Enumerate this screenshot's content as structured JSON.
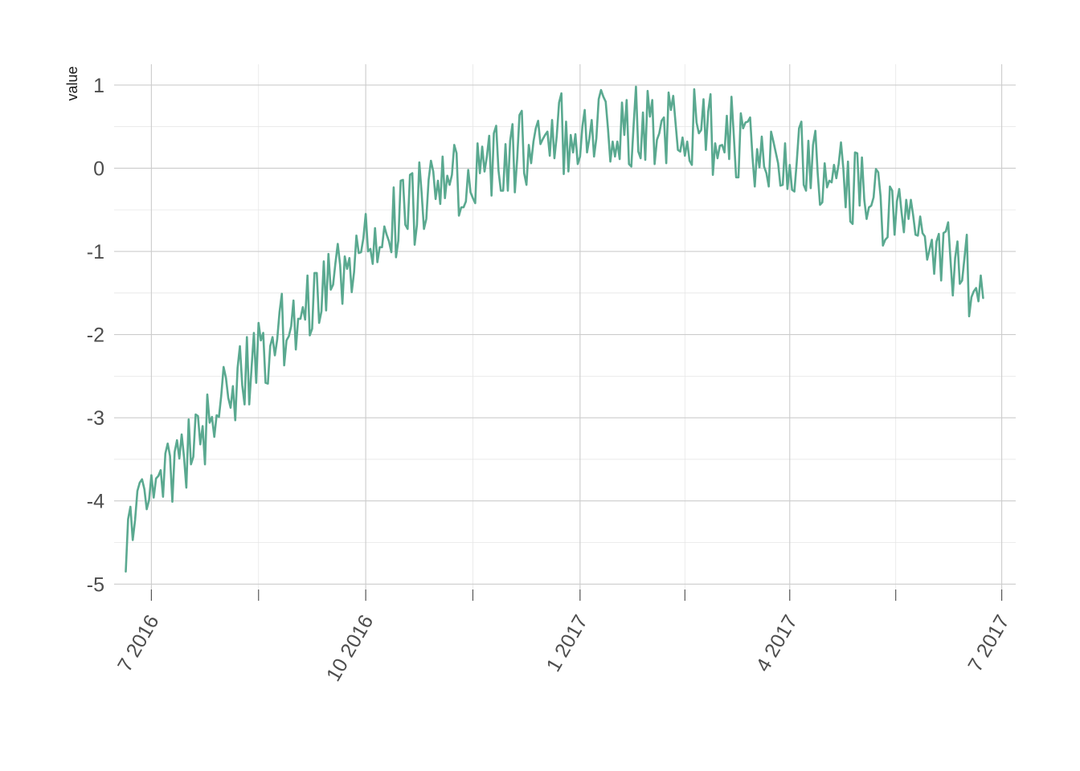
{
  "chart_data": {
    "type": "line",
    "title": "",
    "xlabel": "",
    "ylabel": "value",
    "x_axis_type": "date",
    "xlim": [
      "2016-06-15",
      "2017-07-07"
    ],
    "ylim": [
      -5.2,
      1.25
    ],
    "y_ticks": [
      1,
      0,
      -1,
      -2,
      -3,
      -4,
      -5
    ],
    "y_tick_labels": [
      "1",
      "0",
      "-1",
      "-2",
      "-3",
      "-4",
      "-5"
    ],
    "x_ticks": [
      "2016-07-01",
      "2016-10-01",
      "2017-01-01",
      "2017-04-01",
      "2017-07-01"
    ],
    "x_tick_labels": [
      "7 2016",
      "10 2016",
      "1 2017",
      "4 2017",
      "7 2017"
    ],
    "x_tick_label_rotation_deg": -60,
    "grid": true,
    "legend": "none",
    "line_color": "#5aa990",
    "start_date": "2016-06-20",
    "step_days": 1,
    "series": [
      {
        "values": [
          -4.85,
          -4.22,
          -4.07,
          -4.47,
          -4.23,
          -3.88,
          -3.78,
          -3.74,
          -3.86,
          -4.1,
          -3.99,
          -3.69,
          -3.96,
          -3.73,
          -3.7,
          -3.63,
          -3.95,
          -3.43,
          -3.31,
          -3.46,
          -4.01,
          -3.41,
          -3.27,
          -3.49,
          -3.2,
          -3.47,
          -3.84,
          -3.02,
          -3.56,
          -3.47,
          -2.96,
          -2.98,
          -3.32,
          -3.1,
          -3.56,
          -2.72,
          -3.06,
          -2.99,
          -3.23,
          -2.97,
          -2.99,
          -2.73,
          -2.39,
          -2.52,
          -2.76,
          -2.88,
          -2.62,
          -3.03,
          -2.4,
          -2.14,
          -2.61,
          -2.84,
          -2.03,
          -2.84,
          -2.4,
          -1.98,
          -2.58,
          -1.86,
          -2.07,
          -1.98,
          -2.58,
          -2.59,
          -2.14,
          -2.03,
          -2.25,
          -2.06,
          -1.73,
          -1.51,
          -2.37,
          -2.07,
          -2.02,
          -1.9,
          -1.59,
          -2.18,
          -1.81,
          -1.81,
          -1.67,
          -1.82,
          -1.29,
          -2.01,
          -1.93,
          -1.26,
          -1.26,
          -1.86,
          -1.72,
          -1.12,
          -1.71,
          -1.03,
          -1.46,
          -1.4,
          -1.14,
          -0.91,
          -1.16,
          -1.63,
          -1.06,
          -1.21,
          -1.08,
          -1.49,
          -1.25,
          -0.81,
          -1.02,
          -1.01,
          -0.84,
          -0.55,
          -1.0,
          -0.97,
          -1.15,
          -0.72,
          -1.13,
          -0.95,
          -0.95,
          -0.7,
          -0.8,
          -0.88,
          -1.01,
          -0.23,
          -1.07,
          -0.87,
          -0.15,
          -0.14,
          -0.68,
          -0.73,
          -0.08,
          -0.06,
          -0.92,
          -0.68,
          0.07,
          -0.3,
          -0.73,
          -0.61,
          -0.14,
          0.09,
          -0.04,
          -0.37,
          -0.15,
          -0.43,
          0.14,
          -0.36,
          -0.09,
          -0.2,
          -0.08,
          0.28,
          0.18,
          -0.57,
          -0.47,
          -0.47,
          -0.4,
          -0.02,
          -0.29,
          -0.36,
          -0.42,
          0.3,
          -0.06,
          0.26,
          -0.04,
          0.14,
          0.39,
          -0.33,
          0.42,
          0.51,
          -0.03,
          -0.27,
          -0.27,
          0.29,
          -0.27,
          0.33,
          0.53,
          -0.29,
          0.11,
          0.64,
          0.69,
          -0.06,
          -0.2,
          0.28,
          0.06,
          0.32,
          0.48,
          0.57,
          0.29,
          0.35,
          0.4,
          0.44,
          0.15,
          0.58,
          0.12,
          0.39,
          0.79,
          0.9,
          -0.07,
          0.56,
          -0.04,
          0.4,
          0.19,
          0.41,
          0.05,
          0.14,
          0.5,
          0.7,
          0.19,
          0.36,
          0.58,
          0.14,
          0.36,
          0.83,
          0.94,
          0.86,
          0.8,
          0.47,
          0.08,
          0.32,
          0.14,
          0.32,
          0.11,
          0.79,
          0.4,
          0.82,
          0.05,
          0.02,
          0.52,
          0.98,
          0.2,
          0.12,
          0.67,
          0.1,
          0.93,
          0.62,
          0.82,
          0.05,
          0.34,
          0.42,
          0.57,
          0.61,
          0.06,
          0.91,
          0.7,
          0.87,
          0.54,
          0.22,
          0.2,
          0.37,
          0.15,
          0.32,
          0.09,
          0.04,
          0.95,
          0.55,
          0.42,
          0.46,
          0.83,
          0.22,
          0.68,
          0.89,
          -0.08,
          0.3,
          0.12,
          0.27,
          0.28,
          0.19,
          0.63,
          0.11,
          0.86,
          0.39,
          -0.11,
          -0.11,
          0.66,
          0.48,
          0.55,
          0.56,
          0.61,
          0.14,
          -0.22,
          0.23,
          0.01,
          0.38,
          0.02,
          -0.06,
          -0.22,
          0.44,
          0.32,
          0.19,
          0.06,
          -0.21,
          -0.2,
          0.3,
          -0.25,
          0.04,
          -0.26,
          -0.28,
          0.07,
          0.48,
          0.56,
          -0.2,
          -0.27,
          0.33,
          -0.24,
          0.28,
          0.45,
          -0.06,
          -0.44,
          -0.41,
          0.06,
          -0.23,
          -0.15,
          -0.17,
          0.04,
          -0.12,
          0.05,
          0.31,
          0.0,
          -0.47,
          0.08,
          -0.64,
          -0.67,
          0.19,
          0.18,
          -0.45,
          0.13,
          -0.38,
          -0.61,
          -0.47,
          -0.45,
          -0.35,
          -0.01,
          -0.05,
          -0.34,
          -0.93,
          -0.86,
          -0.83,
          -0.22,
          -0.27,
          -0.8,
          -0.4,
          -0.25,
          -0.53,
          -0.77,
          -0.38,
          -0.61,
          -0.38,
          -0.57,
          -0.8,
          -0.81,
          -0.58,
          -0.78,
          -0.82,
          -1.1,
          -0.98,
          -0.86,
          -1.27,
          -0.88,
          -0.79,
          -1.35,
          -0.78,
          -0.76,
          -0.65,
          -1.1,
          -1.53,
          -1.08,
          -0.88,
          -1.39,
          -1.35,
          -1.08,
          -0.8,
          -1.78,
          -1.55,
          -1.48,
          -1.44,
          -1.6,
          -1.29,
          -1.56
        ]
      }
    ]
  }
}
